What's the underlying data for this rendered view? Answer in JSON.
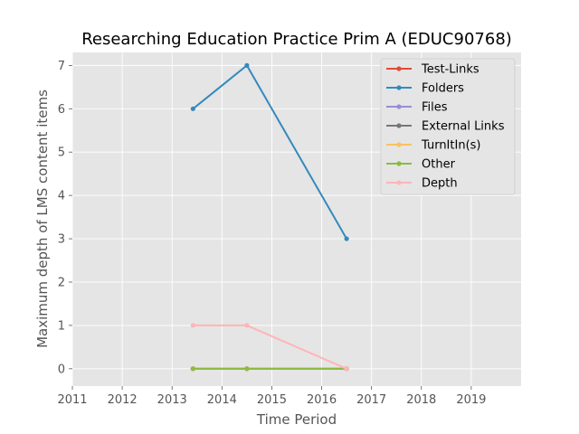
{
  "chart_data": {
    "type": "line",
    "title": "Researching Education Practice Prim A (EDUC90768)",
    "xlabel": "Time Period",
    "ylabel": "Maximum depth of LMS content items",
    "xlim": [
      2011,
      2020
    ],
    "ylim": [
      -0.4,
      7.3
    ],
    "xticks": [
      "2011",
      "2012",
      "2013",
      "2014",
      "2015",
      "2016",
      "2017",
      "2018",
      "2019"
    ],
    "yticks": [
      "0",
      "1",
      "2",
      "3",
      "4",
      "5",
      "6",
      "7"
    ],
    "grid": true,
    "legend_position": "top-right",
    "series": [
      {
        "name": "Test-Links",
        "color": "#e24a33",
        "x": [
          2013.42,
          2014.5,
          2016.5
        ],
        "y": [
          0,
          0,
          0
        ]
      },
      {
        "name": "Folders",
        "color": "#348abd",
        "x": [
          2013.42,
          2014.5,
          2016.5
        ],
        "y": [
          6,
          7,
          3
        ]
      },
      {
        "name": "Files",
        "color": "#988ed5",
        "x": [
          2013.42,
          2014.5,
          2016.5
        ],
        "y": [
          0,
          0,
          0
        ]
      },
      {
        "name": "External Links",
        "color": "#777777",
        "x": [
          2013.42,
          2014.5,
          2016.5
        ],
        "y": [
          0,
          0,
          0
        ]
      },
      {
        "name": "TurnItIn(s)",
        "color": "#fbc15e",
        "x": [
          2013.42,
          2014.5,
          2016.5
        ],
        "y": [
          0,
          0,
          0
        ]
      },
      {
        "name": "Other",
        "color": "#8eba42",
        "x": [
          2013.42,
          2014.5,
          2016.5
        ],
        "y": [
          0,
          0,
          0
        ]
      },
      {
        "name": "Depth",
        "color": "#ffb5b8",
        "x": [
          2013.42,
          2014.5,
          2016.5
        ],
        "y": [
          1,
          1,
          0
        ]
      }
    ]
  }
}
